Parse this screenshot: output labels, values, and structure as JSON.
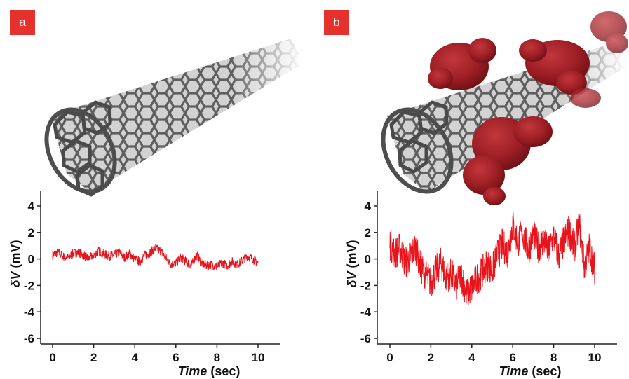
{
  "panels": [
    {
      "label": "a"
    },
    {
      "label": "b"
    }
  ],
  "colors": {
    "badge": "#e5322d",
    "trace": "#e8141c",
    "nanotube": "#6e6e6e",
    "molecule": "#9c1e24"
  },
  "icons": [
    "carbon-nanotube-illustration",
    "adsorbed-molecule-blob"
  ],
  "chart_data": [
    {
      "type": "line",
      "panel": "a",
      "title": "",
      "xlabel_italic": "Time",
      "xlabel_unit": "(sec)",
      "ylabel_symbol": "δV",
      "ylabel_unit": "(mV)",
      "xlim": [
        0,
        10
      ],
      "ylim": [
        -6,
        4
      ],
      "xticks": [
        0,
        2,
        4,
        6,
        8,
        10
      ],
      "yticks": [
        4,
        2,
        0,
        -2,
        -4,
        -6
      ],
      "grid": false,
      "series": [
        {
          "x": [
            0.0,
            0.25,
            0.5,
            0.75,
            1.0,
            1.25,
            1.5,
            1.75,
            2.0,
            2.25,
            2.5,
            2.75,
            3.0,
            3.25,
            3.5,
            3.75,
            4.0,
            4.25,
            4.5,
            4.75,
            5.0,
            5.25,
            5.5,
            5.75,
            6.0,
            6.25,
            6.5,
            6.75,
            7.0,
            7.25,
            7.5,
            7.75,
            8.0,
            8.25,
            8.5,
            8.75,
            9.0,
            9.25,
            9.5,
            9.75,
            10.0
          ],
          "values": [
            0.3,
            0.5,
            0.2,
            0.1,
            0.4,
            0.5,
            0.3,
            0.0,
            0.3,
            0.6,
            0.4,
            0.2,
            0.3,
            0.5,
            0.1,
            0.4,
            0.0,
            -0.2,
            0.3,
            0.5,
            0.8,
            0.6,
            0.1,
            -0.4,
            -0.3,
            0.1,
            -0.2,
            -0.5,
            0.3,
            -0.3,
            -0.5,
            -0.4,
            -0.6,
            -0.3,
            -0.5,
            -0.2,
            -0.4,
            -0.1,
            0.2,
            0.0,
            -0.3
          ]
        }
      ]
    },
    {
      "type": "line",
      "panel": "b",
      "title": "",
      "xlabel_italic": "Time",
      "xlabel_unit": "(sec)",
      "ylabel_symbol": "δV",
      "ylabel_unit": "(mV)",
      "xlim": [
        0,
        10
      ],
      "ylim": [
        -6,
        4
      ],
      "xticks": [
        0,
        2,
        4,
        6,
        8,
        10
      ],
      "yticks": [
        4,
        2,
        0,
        -2,
        -4,
        -6
      ],
      "grid": false,
      "series": [
        {
          "x": [
            0.0,
            0.25,
            0.5,
            0.75,
            1.0,
            1.25,
            1.5,
            1.75,
            2.0,
            2.25,
            2.5,
            2.75,
            3.0,
            3.25,
            3.5,
            3.75,
            4.0,
            4.25,
            4.5,
            4.75,
            5.0,
            5.25,
            5.5,
            5.75,
            6.0,
            6.25,
            6.5,
            6.75,
            7.0,
            7.25,
            7.5,
            7.75,
            8.0,
            8.25,
            8.5,
            8.75,
            9.0,
            9.25,
            9.5,
            9.75,
            10.0
          ],
          "values": [
            1.2,
            0.4,
            0.8,
            -0.3,
            0.2,
            0.9,
            -0.6,
            -1.2,
            -1.8,
            -0.9,
            -0.3,
            -1.4,
            -1.1,
            -2.0,
            -1.3,
            -2.6,
            -2.2,
            -1.5,
            -1.0,
            -0.4,
            -0.9,
            0.3,
            1.1,
            0.4,
            2.6,
            1.3,
            1.9,
            0.7,
            1.8,
            0.9,
            1.4,
            0.5,
            1.7,
            0.2,
            1.3,
            2.2,
            0.8,
            2.6,
            -0.6,
            0.9,
            -0.8
          ]
        }
      ]
    }
  ]
}
